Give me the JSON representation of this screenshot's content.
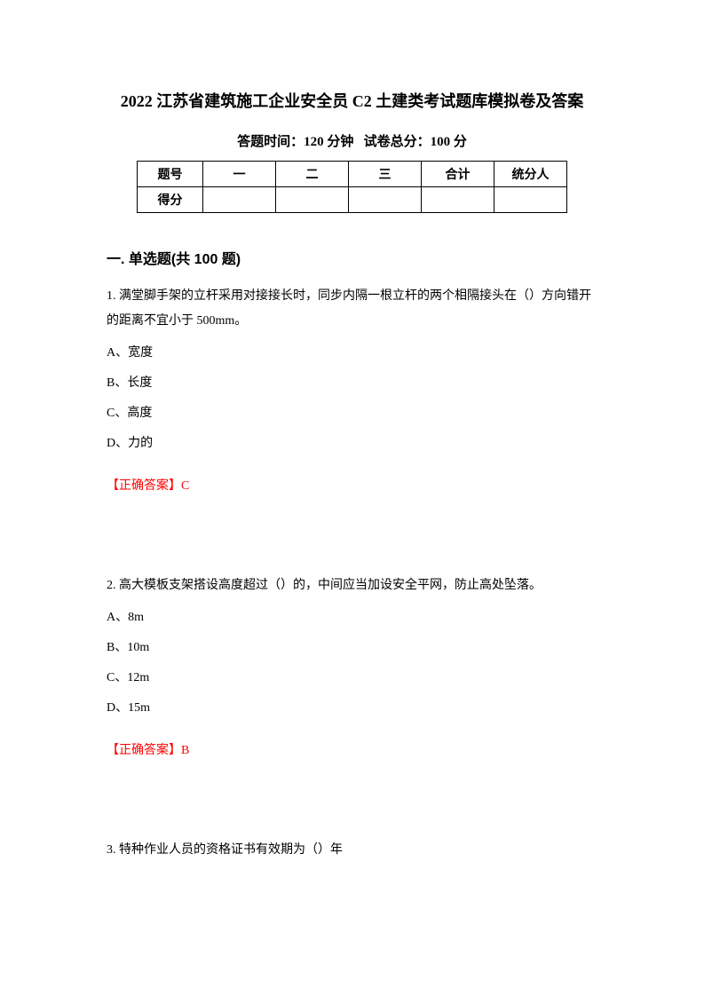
{
  "title": "2022 江苏省建筑施工企业安全员 C2 土建类考试题库模拟卷及答案",
  "examInfo": {
    "timeLabel": "答题时间：",
    "timeValue": "120 分钟",
    "scoreLabel": "试卷总分：",
    "scoreValue": "100 分"
  },
  "scoreTable": {
    "headers": [
      "题号",
      "一",
      "二",
      "三",
      "合计",
      "统分人"
    ],
    "row2Label": "得分"
  },
  "section": {
    "label": "一. 单选题(共 100 题)"
  },
  "questions": [
    {
      "text": "1. 满堂脚手架的立杆采用对接接长时，同步内隔一根立杆的两个相隔接头在（）方向错开的距离不宜小于 500mm。",
      "options": [
        "A、宽度",
        "B、长度",
        "C、高度",
        "D、力的"
      ],
      "answer": "【正确答案】C"
    },
    {
      "text": "2. 高大模板支架搭设高度超过（）的，中间应当加设安全平网，防止高处坠落。",
      "options": [
        "A、8m",
        "B、10m",
        "C、12m",
        "D、15m"
      ],
      "answer": "【正确答案】B"
    },
    {
      "text": "3. 特种作业人员的资格证书有效期为（）年",
      "options": [],
      "answer": ""
    }
  ]
}
